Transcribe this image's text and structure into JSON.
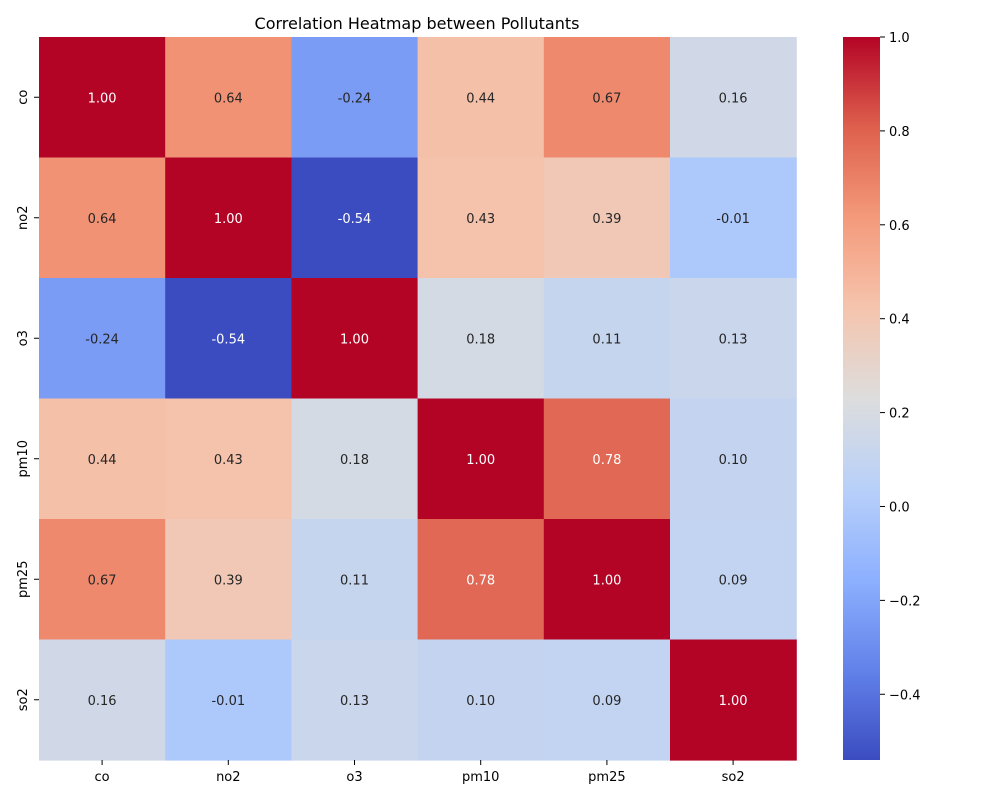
{
  "chart_data": {
    "type": "heatmap",
    "title": "Correlation Heatmap between Pollutants",
    "xlabel": "",
    "ylabel": "",
    "x_categories": [
      "co",
      "no2",
      "o3",
      "pm10",
      "pm25",
      "so2"
    ],
    "y_categories": [
      "co",
      "no2",
      "o3",
      "pm10",
      "pm25",
      "so2"
    ],
    "values": [
      [
        1.0,
        0.64,
        -0.24,
        0.44,
        0.67,
        0.16
      ],
      [
        0.64,
        1.0,
        -0.54,
        0.43,
        0.39,
        -0.01
      ],
      [
        -0.24,
        -0.54,
        1.0,
        0.18,
        0.11,
        0.13
      ],
      [
        0.44,
        0.43,
        0.18,
        1.0,
        0.78,
        0.1
      ],
      [
        0.67,
        0.39,
        0.11,
        0.78,
        1.0,
        0.09
      ],
      [
        0.16,
        -0.01,
        0.13,
        0.1,
        0.09,
        1.0
      ]
    ],
    "value_labels": [
      [
        "1.00",
        "0.64",
        "-0.24",
        "0.44",
        "0.67",
        "0.16"
      ],
      [
        "0.64",
        "1.00",
        "-0.54",
        "0.43",
        "0.39",
        "-0.01"
      ],
      [
        "-0.24",
        "-0.54",
        "1.00",
        "0.18",
        "0.11",
        "0.13"
      ],
      [
        "0.44",
        "0.43",
        "0.18",
        "1.00",
        "0.78",
        "0.10"
      ],
      [
        "0.67",
        "0.39",
        "0.11",
        "0.78",
        "1.00",
        "0.09"
      ],
      [
        "0.16",
        "-0.01",
        "0.13",
        "0.10",
        "0.09",
        "1.00"
      ]
    ],
    "colormap": "coolwarm",
    "colorbar": {
      "range": [
        -0.54,
        1.0
      ],
      "ticks": [
        -0.4,
        -0.2,
        0.0,
        0.2,
        0.4,
        0.6,
        0.8,
        1.0
      ],
      "tick_labels": [
        "−0.4",
        "−0.2",
        "0.0",
        "0.2",
        "0.4",
        "0.6",
        "0.8",
        "1.0"
      ]
    },
    "grid": false
  }
}
